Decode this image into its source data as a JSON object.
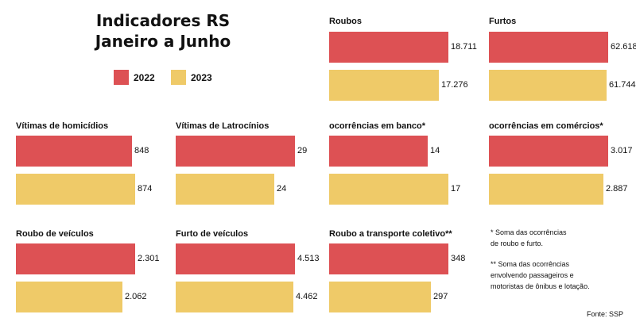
{
  "header": {
    "title_line1": "Indicadores RS",
    "title_line2": "Janeiro a Junho"
  },
  "legend": {
    "items": [
      {
        "label": "2022",
        "color": "#dd5154"
      },
      {
        "label": "2023",
        "color": "#efca68"
      }
    ]
  },
  "colors": {
    "y2022": "#dd5154",
    "y2023": "#efca68"
  },
  "chart_data": [
    {
      "type": "bar",
      "title": "Roubos",
      "categories": [
        "2022",
        "2023"
      ],
      "values": [
        18711,
        17276
      ],
      "labels": [
        "18.711",
        "17.276"
      ]
    },
    {
      "type": "bar",
      "title": "Furtos",
      "categories": [
        "2022",
        "2023"
      ],
      "values": [
        62618,
        61744
      ],
      "labels": [
        "62.618",
        "61.744"
      ]
    },
    {
      "type": "bar",
      "title": "Vítimas de homicídios",
      "categories": [
        "2022",
        "2023"
      ],
      "values": [
        848,
        874
      ],
      "labels": [
        "848",
        "874"
      ]
    },
    {
      "type": "bar",
      "title": "Vítimas de Latrocínios",
      "categories": [
        "2022",
        "2023"
      ],
      "values": [
        29,
        24
      ],
      "labels": [
        "29",
        "24"
      ]
    },
    {
      "type": "bar",
      "title": "ocorrências em banco*",
      "categories": [
        "2022",
        "2023"
      ],
      "values": [
        14,
        17
      ],
      "labels": [
        "14",
        "17"
      ]
    },
    {
      "type": "bar",
      "title": "ocorrências em comércios*",
      "categories": [
        "2022",
        "2023"
      ],
      "values": [
        3017,
        2887
      ],
      "labels": [
        "3.017",
        "2.887"
      ]
    },
    {
      "type": "bar",
      "title": "Roubo de veículos",
      "categories": [
        "2022",
        "2023"
      ],
      "values": [
        2301,
        2062
      ],
      "labels": [
        "2.301",
        "2.062"
      ]
    },
    {
      "type": "bar",
      "title": "Furto de veículos",
      "categories": [
        "2022",
        "2023"
      ],
      "values": [
        4513,
        4462
      ],
      "labels": [
        "4.513",
        "4.462"
      ]
    },
    {
      "type": "bar",
      "title": "Roubo a transporte coletivo**",
      "categories": [
        "2022",
        "2023"
      ],
      "values": [
        348,
        297
      ],
      "labels": [
        "348",
        "297"
      ]
    }
  ],
  "notes": {
    "note1_line1": "* Soma das ocorrências",
    "note1_line2": "de roubo e furto.",
    "note2_line1": "** Soma das ocorrências",
    "note2_line2": "envolvendo passageiros e",
    "note2_line3": "motoristas de ônibus e lotação."
  },
  "source": "Fonte: SSP"
}
